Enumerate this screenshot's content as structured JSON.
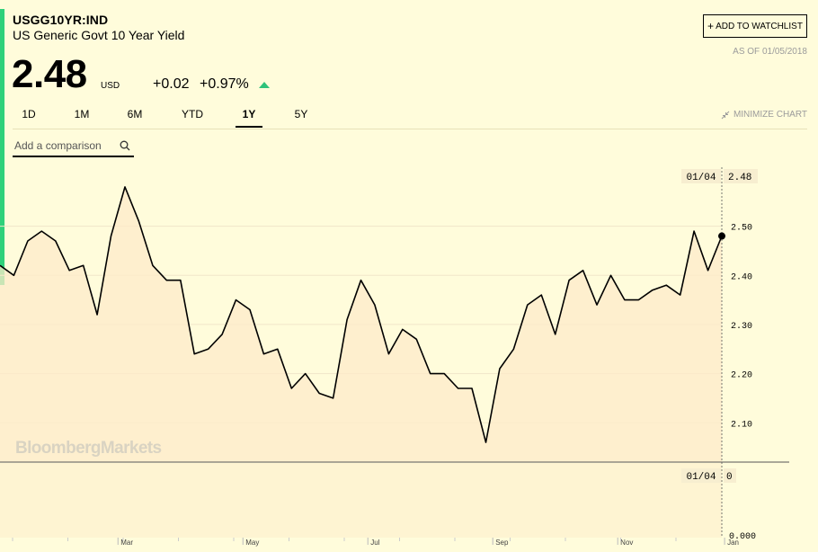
{
  "header": {
    "ticker": "USGG10YR:IND",
    "name": "US Generic Govt 10 Year Yield",
    "price": "2.48",
    "currency": "USD",
    "change": "+0.02",
    "change_pct": "+0.97%",
    "watchlist_label": "ADD TO WATCHLIST",
    "as_of": "AS OF 01/05/2018"
  },
  "range_tabs": [
    {
      "label": "1D",
      "active": false
    },
    {
      "label": "1M",
      "active": false
    },
    {
      "label": "6M",
      "active": false
    },
    {
      "label": "YTD",
      "active": false
    },
    {
      "label": "1Y",
      "active": true
    },
    {
      "label": "5Y",
      "active": false
    }
  ],
  "minimize_label": "MINIMIZE CHART",
  "comparison": {
    "placeholder": "Add a comparison"
  },
  "watermark": "BloombergMarkets",
  "colors": {
    "accent": "#2fd17a",
    "up": "#2fc27a",
    "fill": "#fdebc9",
    "line": "#000000"
  },
  "icons": {
    "watchlist": "plus-icon",
    "comparison": "search-icon",
    "minimize": "minimize-icon",
    "change": "up-arrow-icon"
  },
  "chart_data": {
    "type": "area",
    "price_panel": {
      "ylim": [
        2.02,
        2.62
      ],
      "y_ticks": [
        "2.10",
        "2.20",
        "2.30",
        "2.40",
        "2.50"
      ],
      "y_tick_values": [
        2.1,
        2.2,
        2.3,
        2.4,
        2.5
      ],
      "crosshair_label": "01/04",
      "crosshair_value": "2.48",
      "values": [
        2.42,
        2.4,
        2.47,
        2.49,
        2.47,
        2.41,
        2.42,
        2.32,
        2.48,
        2.58,
        2.51,
        2.42,
        2.39,
        2.39,
        2.24,
        2.25,
        2.28,
        2.35,
        2.33,
        2.24,
        2.25,
        2.17,
        2.2,
        2.16,
        2.15,
        2.31,
        2.39,
        2.34,
        2.24,
        2.29,
        2.27,
        2.2,
        2.2,
        2.17,
        2.17,
        2.06,
        2.21,
        2.25,
        2.34,
        2.36,
        2.28,
        2.39,
        2.41,
        2.34,
        2.4,
        2.35,
        2.35,
        2.37,
        2.38,
        2.36,
        2.49,
        2.41,
        2.48
      ]
    },
    "volume_panel": {
      "crosshair_label": "01/04",
      "crosshair_value": "0",
      "axis_label": "0.000"
    },
    "x_ticks": [
      "Mar",
      "May",
      "Jul",
      "Sep",
      "Nov",
      "Jan"
    ],
    "x_tick_index": [
      8.5,
      17.5,
      26.5,
      35.5,
      44.5,
      52.2
    ]
  }
}
